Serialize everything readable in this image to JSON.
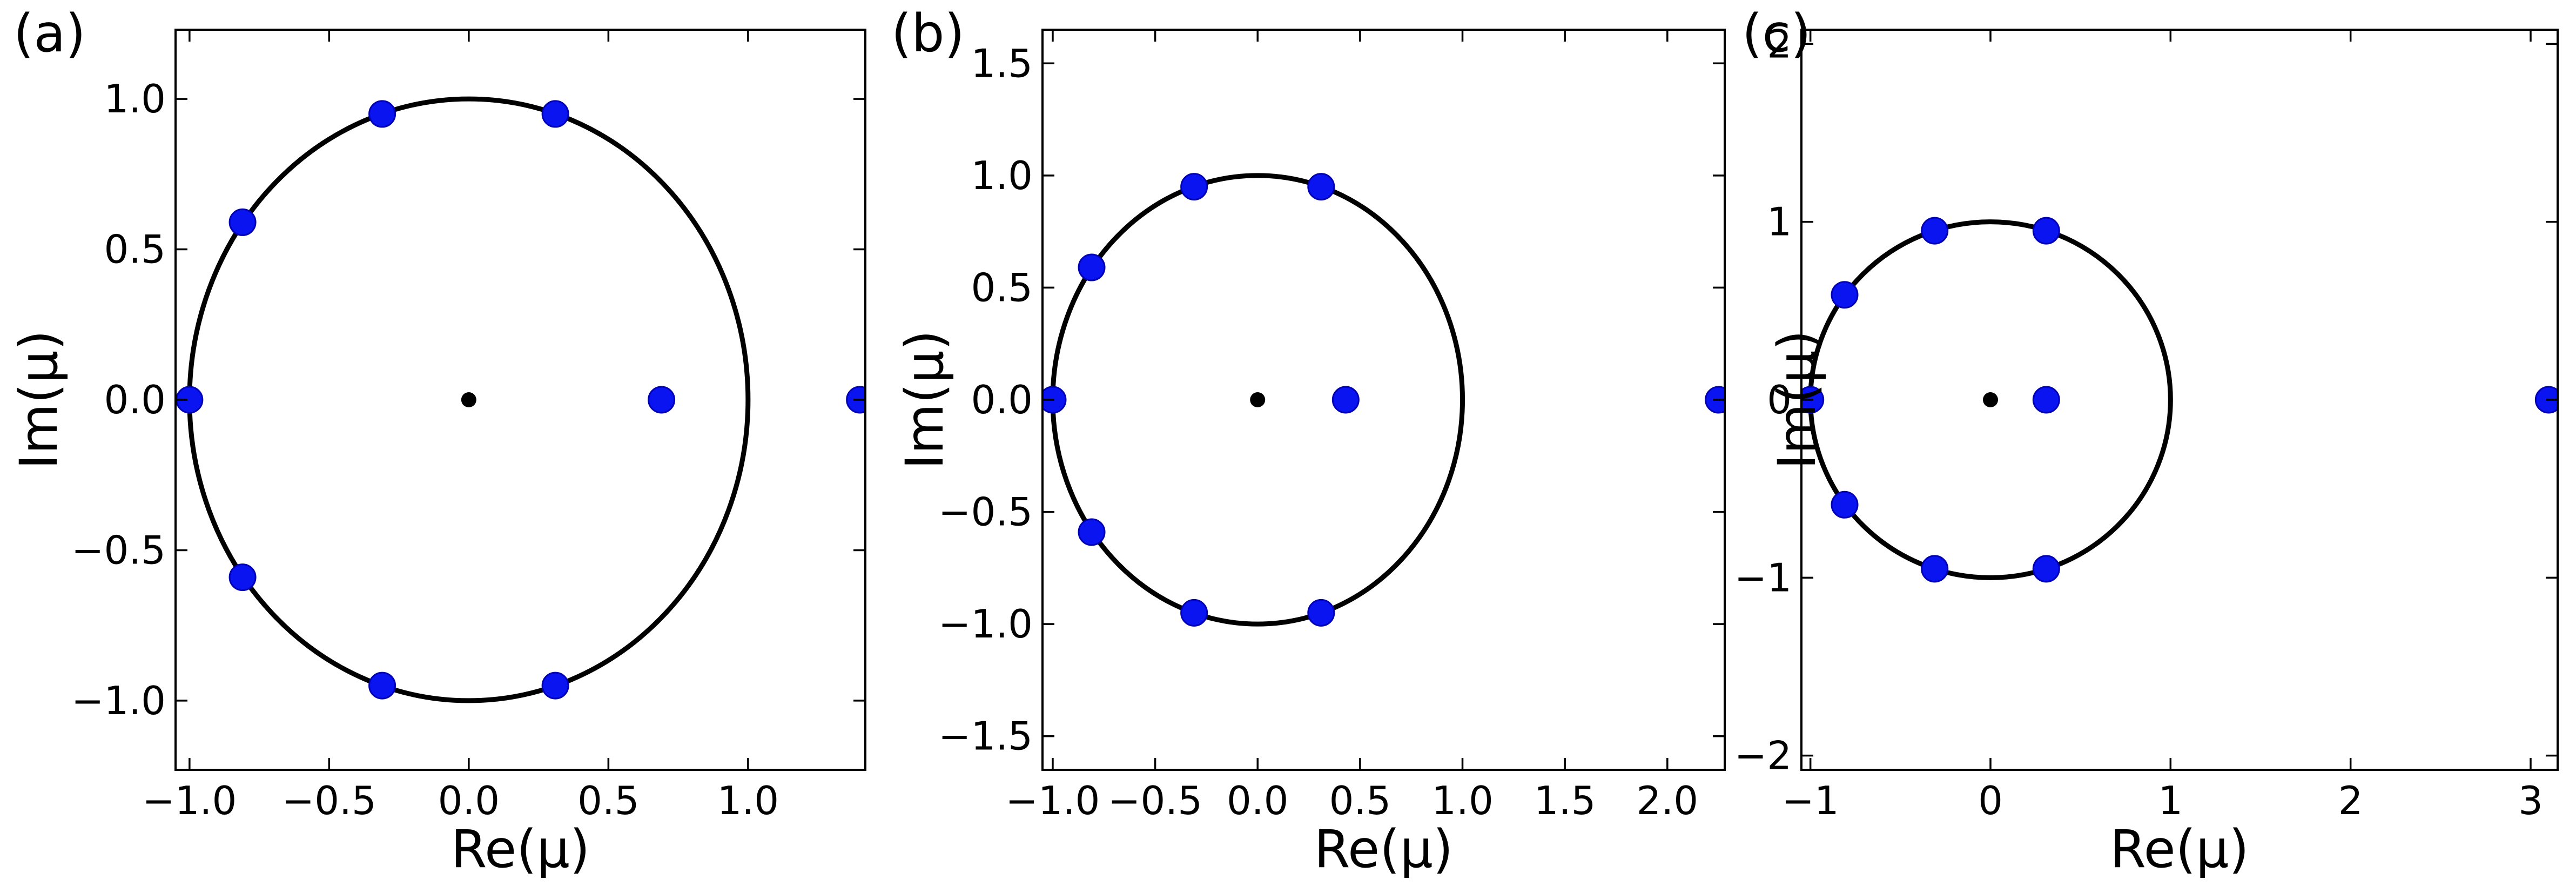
{
  "chart_data": [
    {
      "type": "scatter",
      "panel_label": "(a)",
      "xlabel": "Re(μ)",
      "ylabel": "Im(μ)",
      "xlim": [
        -1.05,
        1.42
      ],
      "ylim": [
        -1.23,
        1.23
      ],
      "xticks": [
        -1.0,
        -0.5,
        0.0,
        0.5,
        1.0
      ],
      "xtick_labels": [
        "−1.0",
        "−0.5",
        "0.0",
        "0.5",
        "1.0"
      ],
      "yticks": [
        -1.0,
        -0.5,
        0.0,
        0.5,
        1.0
      ],
      "ytick_labels": [
        "−1.0",
        "−0.5",
        "0.0",
        "0.5",
        "1.0"
      ],
      "unit_circle": {
        "center": [
          0,
          0
        ],
        "radius": 1
      },
      "center_point": [
        0,
        0
      ],
      "points": [
        {
          "x": 0.31,
          "y": 0.95
        },
        {
          "x": -0.31,
          "y": 0.95
        },
        {
          "x": -0.81,
          "y": 0.59
        },
        {
          "x": -1.0,
          "y": 0.0
        },
        {
          "x": -0.81,
          "y": -0.59
        },
        {
          "x": -0.31,
          "y": -0.95
        },
        {
          "x": 0.31,
          "y": -0.95
        },
        {
          "x": 0.69,
          "y": 0.0
        },
        {
          "x": 1.4,
          "y": 0.0
        }
      ]
    },
    {
      "type": "scatter",
      "panel_label": "(b)",
      "xlabel": "Re(μ)",
      "ylabel": "Im(μ)",
      "xlim": [
        -1.05,
        2.28
      ],
      "ylim": [
        -1.65,
        1.65
      ],
      "xticks": [
        -1.0,
        -0.5,
        0.0,
        0.5,
        1.0,
        1.5,
        2.0
      ],
      "xtick_labels": [
        "−1.0",
        "−0.5",
        "0.0",
        "0.5",
        "1.0",
        "1.5",
        "2.0"
      ],
      "yticks": [
        -1.5,
        -1.0,
        -0.5,
        0.0,
        0.5,
        1.0,
        1.5
      ],
      "ytick_labels": [
        "−1.5",
        "−1.0",
        "−0.5",
        "0.0",
        "0.5",
        "1.0",
        "1.5"
      ],
      "unit_circle": {
        "center": [
          0,
          0
        ],
        "radius": 1
      },
      "center_point": [
        0,
        0
      ],
      "points": [
        {
          "x": 0.31,
          "y": 0.95
        },
        {
          "x": -0.31,
          "y": 0.95
        },
        {
          "x": -0.81,
          "y": 0.59
        },
        {
          "x": -1.0,
          "y": 0.0
        },
        {
          "x": -0.81,
          "y": -0.59
        },
        {
          "x": -0.31,
          "y": -0.95
        },
        {
          "x": 0.31,
          "y": -0.95
        },
        {
          "x": 0.43,
          "y": 0.0
        },
        {
          "x": 2.25,
          "y": 0.0
        }
      ]
    },
    {
      "type": "scatter",
      "panel_label": "(c)",
      "xlabel": "Re(μ)",
      "ylabel": "Im(μ)",
      "xlim": [
        -1.05,
        3.15
      ],
      "ylim": [
        -2.08,
        2.08
      ],
      "xticks": [
        -1,
        0,
        1,
        2,
        3
      ],
      "xtick_labels": [
        "−1",
        "0",
        "1",
        "2",
        "3"
      ],
      "yticks": [
        -2,
        -1,
        0,
        1,
        2
      ],
      "ytick_labels": [
        "−2",
        "−1",
        "0",
        "1",
        "2"
      ],
      "unit_circle": {
        "center": [
          0,
          0
        ],
        "radius": 1
      },
      "center_point": [
        0,
        0
      ],
      "points": [
        {
          "x": 0.31,
          "y": 0.95
        },
        {
          "x": -0.31,
          "y": 0.95
        },
        {
          "x": -0.81,
          "y": 0.59
        },
        {
          "x": -1.0,
          "y": 0.0
        },
        {
          "x": -0.81,
          "y": -0.59
        },
        {
          "x": -0.31,
          "y": -0.95
        },
        {
          "x": 0.31,
          "y": -0.95
        },
        {
          "x": 0.31,
          "y": 0.0
        },
        {
          "x": 3.1,
          "y": 0.0
        }
      ]
    }
  ],
  "colors": {
    "points": "#0a14f0",
    "curve": "#000000",
    "axes": "#000000"
  }
}
